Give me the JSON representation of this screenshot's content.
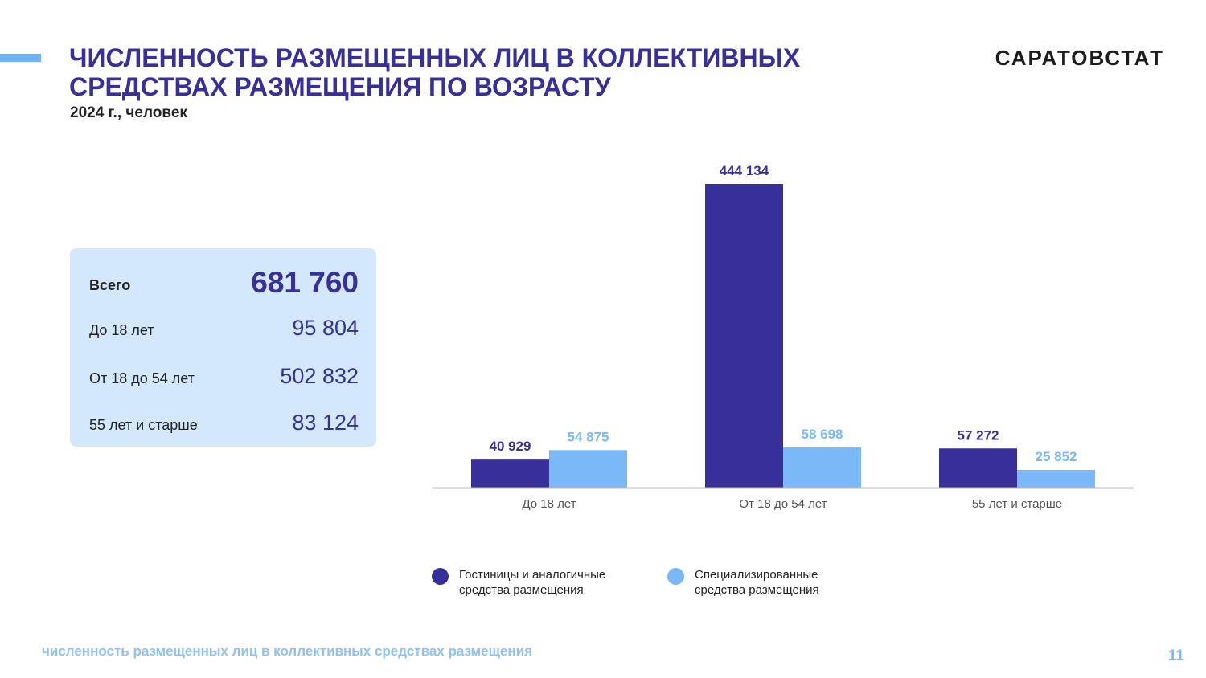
{
  "header": {
    "title_line1": "ЧИСЛЕННОСТЬ РАЗМЕЩЕННЫХ ЛИЦ В КОЛЛЕКТИВНЫХ",
    "title_line2": "СРЕДСТВАХ РАЗМЕЩЕНИЯ ПО ВОЗРАСТУ",
    "subtitle": "2024 г., человек",
    "brand": "САРАТОВСТАТ"
  },
  "summary": {
    "total_label": "Всего",
    "total_value": "681 760",
    "rows": [
      {
        "label": "До 18 лет",
        "value": "95 804"
      },
      {
        "label": "От 18 до 54 лет",
        "value": "502 832"
      },
      {
        "label": "55 лет и старше",
        "value": "83 124"
      }
    ]
  },
  "chart_data": {
    "type": "bar",
    "categories": [
      "До 18 лет",
      "От 18 до 54 лет",
      "55 лет и старше"
    ],
    "series": [
      {
        "name": "Гостиницы и аналогичные средства размещения",
        "values": [
          40929,
          444134,
          57272
        ],
        "labels": [
          "40 929",
          "444 134",
          "57 272"
        ],
        "color": "#37309a"
      },
      {
        "name": "Специализированные средства размещения",
        "values": [
          54875,
          58698,
          25852
        ],
        "labels": [
          "54 875",
          "58 698",
          "25 852"
        ],
        "color": "#7ab8f8"
      }
    ],
    "legend_lines": [
      [
        "Гостиницы и аналогичные",
        "средства размещения"
      ],
      [
        "Специализированные",
        "средства размещения"
      ]
    ],
    "ylim": [
      0,
      444134
    ],
    "grid": false,
    "legend_position": "bottom"
  },
  "footer": {
    "text": "численность размещенных лиц в коллективных средствах размещения",
    "page_number": "11"
  },
  "colors": {
    "accent": "#37309a",
    "light_accent": "#7ab8f8",
    "panel": "#d4e8fd"
  }
}
